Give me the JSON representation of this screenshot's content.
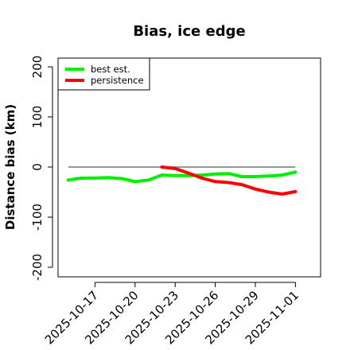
{
  "chart_data": {
    "type": "line",
    "title": "Bias, ice edge",
    "xlabel": "",
    "ylabel": "Distance bias (km)",
    "ylim": [
      -210,
      215
    ],
    "y_ticks": [
      -200,
      -100,
      0,
      100,
      200
    ],
    "y_tick_labels": [
      "-200",
      "-100",
      "0",
      "100",
      "200"
    ],
    "x_ticks": [
      "2025-10-17",
      "2025-10-20",
      "2025-10-23",
      "2025-10-26",
      "2025-10-29",
      "2025-11-01"
    ],
    "reference_line_y": 0,
    "legend_position": "top-left",
    "grid": false,
    "series": [
      {
        "name": "best est.",
        "color": "#00ee00",
        "x": [
          "2025-10-15",
          "2025-10-16",
          "2025-10-17",
          "2025-10-18",
          "2025-10-19",
          "2025-10-20",
          "2025-10-21",
          "2025-10-22",
          "2025-10-23",
          "2025-10-24",
          "2025-10-25",
          "2025-10-26",
          "2025-10-27",
          "2025-10-28",
          "2025-10-29",
          "2025-10-30",
          "2025-10-31",
          "2025-11-01"
        ],
        "values": [
          -26,
          -22,
          -22,
          -21,
          -23,
          -29,
          -26,
          -16,
          -17,
          -17,
          -16,
          -14,
          -13,
          -19,
          -19,
          -18,
          -16,
          -10
        ]
      },
      {
        "name": "persistence",
        "color": "#ff0000",
        "x": [
          "2025-10-22",
          "2025-10-23",
          "2025-10-24",
          "2025-10-25",
          "2025-10-26",
          "2025-10-27",
          "2025-10-28",
          "2025-10-29",
          "2025-10-30",
          "2025-10-31",
          "2025-11-01"
        ],
        "values": [
          0,
          -3,
          -12,
          -22,
          -29,
          -31,
          -35,
          -44,
          -50,
          -54,
          -49
        ]
      }
    ]
  }
}
